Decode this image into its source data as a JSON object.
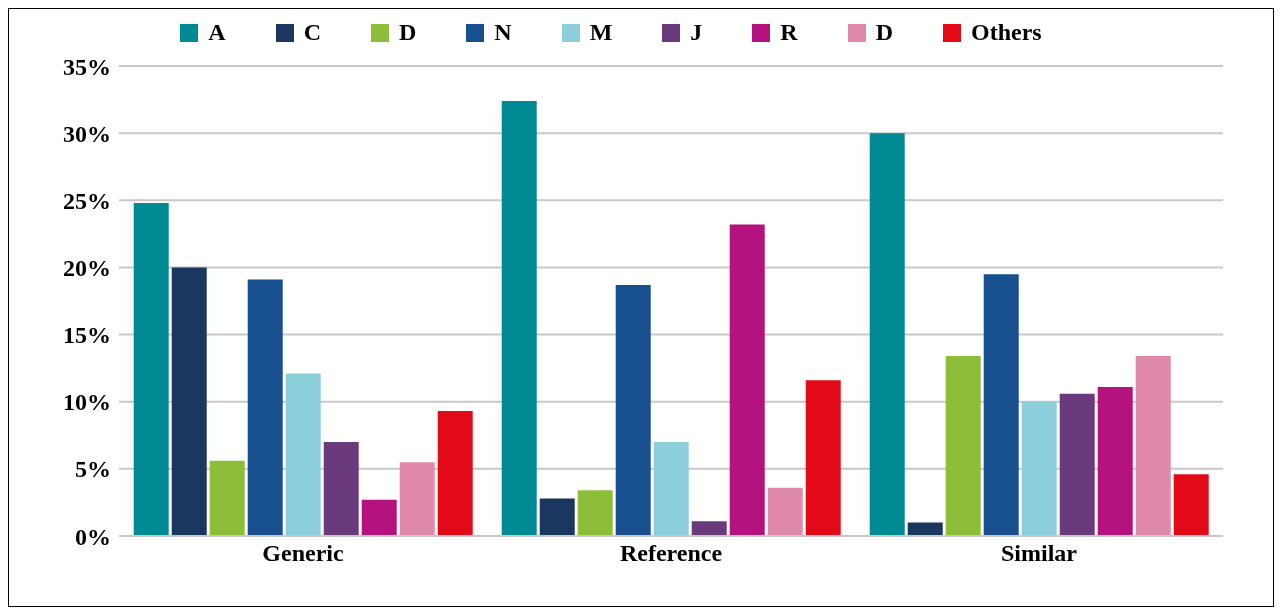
{
  "chart_data": {
    "type": "bar",
    "categories": [
      "Generic",
      "Reference",
      "Similar"
    ],
    "series": [
      {
        "name": "A",
        "color": "#008a93",
        "values": [
          24.8,
          32.4,
          30.0
        ]
      },
      {
        "name": "C",
        "color": "#1b365f",
        "values": [
          20.0,
          2.8,
          1.0
        ]
      },
      {
        "name": "D",
        "color": "#8dbe3a",
        "values": [
          5.6,
          3.4,
          13.4
        ]
      },
      {
        "name": "N",
        "color": "#174f8f",
        "values": [
          19.1,
          18.7,
          19.5
        ]
      },
      {
        "name": "M",
        "color": "#8ccfda",
        "values": [
          12.1,
          7.0,
          10.0
        ]
      },
      {
        "name": "J",
        "color": "#6b3a7c",
        "values": [
          7.0,
          1.1,
          10.6
        ]
      },
      {
        "name": "R",
        "color": "#b3127f",
        "values": [
          2.7,
          23.2,
          11.1
        ]
      },
      {
        "name": "D",
        "color": "#df8aab",
        "values": [
          5.5,
          3.6,
          13.4
        ]
      },
      {
        "name": "Others",
        "color": "#e20a16",
        "values": [
          9.3,
          11.6,
          4.6
        ]
      }
    ],
    "ylim": [
      0,
      35
    ],
    "yticks": [
      {
        "value": 0,
        "label": "0%"
      },
      {
        "value": 5,
        "label": "5%"
      },
      {
        "value": 10,
        "label": "10%"
      },
      {
        "value": 15,
        "label": "15%"
      },
      {
        "value": 20,
        "label": "20%"
      },
      {
        "value": 25,
        "label": "25%"
      },
      {
        "value": 30,
        "label": "30%"
      },
      {
        "value": 35,
        "label": "35%"
      }
    ],
    "grid": "y",
    "legend": "top"
  }
}
